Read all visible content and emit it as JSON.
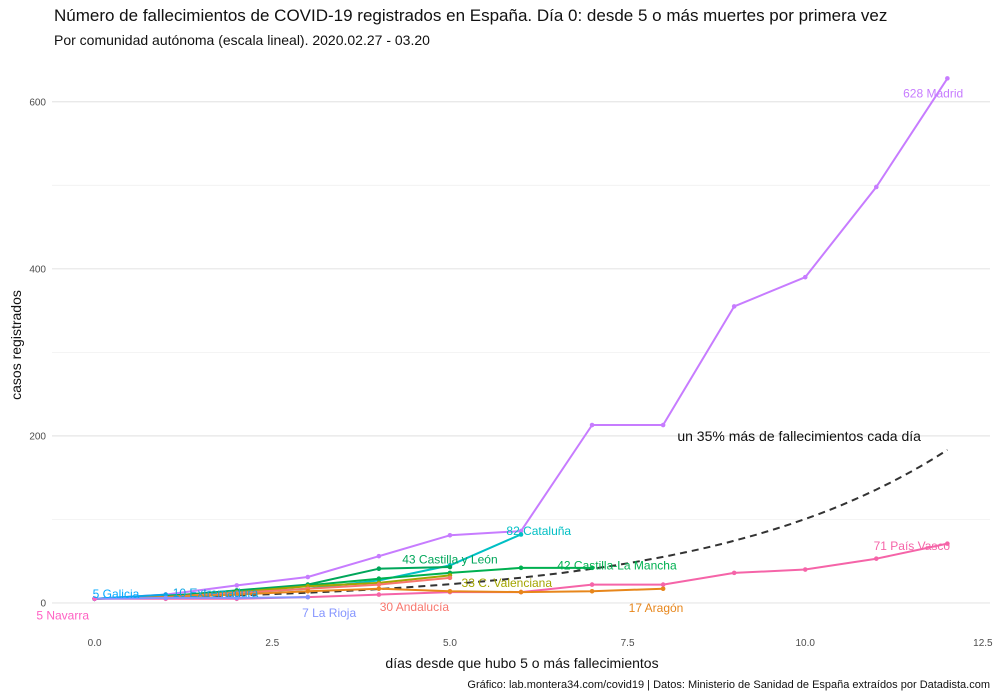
{
  "header": {
    "title": "Número de fallecimientos de COVID-19 registrados en España. Día 0: desde 5 o más muertes por primera vez",
    "subtitle": "Por comunidad autónoma (escala lineal). 2020.02.27 - 03.20"
  },
  "caption": "Gráfico: lab.montera34.com/covid19 | Datos: Ministerio de Sanidad de España extraídos por Datadista.com",
  "chart_data": {
    "type": "line",
    "xlabel": "días desde que hubo 5 o más fallecimientos",
    "ylabel": "casos registrados",
    "xlim": [
      -0.6,
      12.6
    ],
    "ylim": [
      -30,
      650
    ],
    "xticks": [
      0,
      2.5,
      5,
      7.5,
      10,
      12.5
    ],
    "xtick_labels": [
      "0.0",
      "2.5",
      "5.0",
      "7.5",
      "10.0",
      "12.5"
    ],
    "yticks": [
      0,
      200,
      400,
      600
    ],
    "ytick_labels": [
      "0",
      "200",
      "400",
      "600"
    ],
    "grid": true,
    "legend": "none",
    "series": [
      {
        "label": "628 Madrid",
        "color": "#c77cff",
        "x": [
          0,
          1,
          2,
          3,
          4,
          5,
          6,
          7,
          8,
          9,
          10,
          11,
          12
        ],
        "y": [
          5,
          10,
          21,
          31,
          56,
          81,
          86,
          213,
          213,
          355,
          390,
          498,
          628
        ]
      },
      {
        "label": "82 Cataluña",
        "color": "#00bfc4",
        "x": [
          0,
          1,
          2,
          3,
          4,
          5,
          6
        ],
        "y": [
          5,
          9,
          12,
          17,
          27,
          45,
          82
        ]
      },
      {
        "label": "42 Castilla-La Mancha",
        "color": "#00b050",
        "x": [
          0,
          1,
          2,
          3,
          4,
          5,
          6,
          7
        ],
        "y": [
          5,
          8,
          13,
          21,
          29,
          36,
          42,
          42
        ]
      },
      {
        "label": "43 Castilla y León",
        "color": "#00a65a",
        "x": [
          0,
          1,
          2,
          3,
          4,
          5
        ],
        "y": [
          5,
          8,
          15,
          22,
          41,
          43
        ]
      },
      {
        "label": "71 País Vasco",
        "color": "#f564a8",
        "x": [
          0,
          1,
          2,
          3,
          4,
          5,
          6,
          7,
          8,
          9,
          10,
          11,
          12
        ],
        "y": [
          5,
          5,
          5,
          7,
          10,
          13,
          13,
          22,
          22,
          36,
          40,
          53,
          71
        ]
      },
      {
        "label": "33 C. Valenciana",
        "color": "#a3a500",
        "x": [
          0,
          1,
          2,
          3,
          4,
          5
        ],
        "y": [
          5,
          7,
          13,
          20,
          24,
          33
        ]
      },
      {
        "label": "30 Andalucía",
        "color": "#f8766d",
        "x": [
          0,
          1,
          2,
          3,
          4,
          5
        ],
        "y": [
          5,
          7,
          12,
          17,
          22,
          30
        ]
      },
      {
        "label": "17 Aragón",
        "color": "#e7861b",
        "x": [
          0,
          1,
          2,
          3,
          4,
          5,
          6,
          7,
          8
        ],
        "y": [
          5,
          7,
          10,
          14,
          17,
          14,
          13,
          14,
          17
        ]
      },
      {
        "label": "10 Extremadura",
        "color": "#0ca5e4",
        "x": [
          0,
          1
        ],
        "y": [
          5,
          10
        ]
      },
      {
        "label": "5 Galicia",
        "color": "#00a9ff",
        "x": [
          0
        ],
        "y": [
          5
        ]
      },
      {
        "label": "7 La Rioja",
        "color": "#8494ff",
        "x": [
          0,
          1,
          2,
          3
        ],
        "y": [
          5,
          6,
          6,
          7
        ]
      },
      {
        "label": "5 Navarra",
        "color": "#ff61c3",
        "x": [
          0
        ],
        "y": [
          5
        ]
      }
    ],
    "reference": {
      "label": "un 35% más de fallecimientos cada día",
      "base": 5,
      "growth": 1.35,
      "x_range": [
        0,
        12
      ]
    }
  }
}
